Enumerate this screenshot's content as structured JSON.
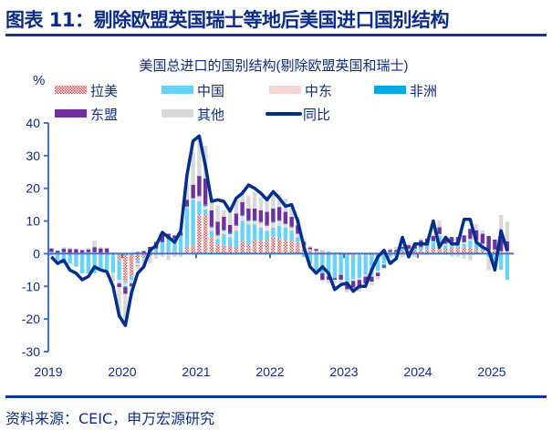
{
  "header": {
    "title": "图表 11：剔除欧盟英国瑞士等地后美国进口国别结构"
  },
  "footer": {
    "source": "资料来源：CEIC，申万宏源研究"
  },
  "chart_data": {
    "type": "bar",
    "subtype": "stacked bar with line",
    "title": "美国总进口的国别结构(剔除欧盟英国和瑞士)",
    "ylabel": "%",
    "ylim": [
      -30,
      40
    ],
    "yticks": [
      40,
      30,
      20,
      10,
      0,
      -10,
      -20,
      -30
    ],
    "xticks": [
      "2019",
      "2020",
      "2021",
      "2022",
      "2023",
      "2024",
      "2025"
    ],
    "x_start": "2019-01",
    "x_end": "2025-03",
    "frequency": "monthly",
    "legend_placement": "top",
    "grid": false,
    "series": [
      {
        "name": "拉美",
        "kind": "bar",
        "color": "#f08080",
        "pattern": "dotted",
        "values": [
          0.3,
          0.2,
          0.3,
          0.2,
          0.2,
          0.1,
          0.2,
          0.3,
          0.2,
          0.2,
          -0.5,
          -2,
          -8,
          -7,
          -2,
          -1,
          -1,
          0.5,
          0.5,
          0.5,
          0.5,
          0.5,
          2,
          2.5,
          12,
          12,
          5,
          3,
          2.5,
          2.5,
          2,
          4,
          3,
          4,
          4,
          4,
          5,
          4.5,
          4,
          4,
          3.5,
          2,
          1,
          0.5,
          0.5,
          0.3,
          -0.5,
          -0.5,
          -0.5,
          -0.8,
          -0.5,
          -0.5,
          -0.5,
          -0.3,
          0.2,
          0.5,
          0.5,
          1,
          1.5,
          1,
          1,
          1.5,
          2,
          2,
          1.5,
          2,
          2,
          2,
          2,
          1.5,
          1,
          1,
          1,
          0.5,
          0.5
        ]
      },
      {
        "name": "中国",
        "kind": "bar",
        "color": "#66d4fa",
        "values": [
          -0.5,
          -2,
          -3,
          -3,
          -4,
          -6,
          -6,
          -6,
          -5,
          -5,
          -5,
          -6,
          -1,
          -1,
          -1,
          -0.5,
          0.5,
          1,
          3,
          4,
          4,
          5,
          12,
          14,
          4,
          1.5,
          2,
          1.5,
          3.5,
          2.5,
          5,
          6,
          6,
          5,
          4,
          3,
          3,
          4,
          4,
          3,
          1.5,
          -1,
          -3,
          -5,
          -6,
          -7,
          -7,
          -6,
          -8,
          -7,
          -7,
          -6,
          -6,
          -5,
          -3,
          -1,
          -1,
          0.5,
          -0.5,
          0.5,
          1,
          1,
          1.5,
          3.5,
          1,
          1,
          1,
          1,
          2,
          2,
          1.5,
          -1,
          -3,
          -5,
          -8
        ]
      },
      {
        "name": "中东",
        "kind": "bar",
        "color": "#f8d4d4",
        "values": [
          0.2,
          0.1,
          0.1,
          0.1,
          0.1,
          0.1,
          0.2,
          0.1,
          0.1,
          0.1,
          0,
          -1,
          -1,
          -1,
          -0.5,
          -0.5,
          0,
          0,
          0,
          0,
          0,
          0,
          0.3,
          0.3,
          1.5,
          1,
          1,
          1,
          1,
          1,
          1.5,
          1.5,
          1,
          1,
          1.5,
          1.5,
          1.5,
          1.5,
          1,
          1,
          1,
          0.5,
          0.3,
          0.3,
          0.3,
          0.2,
          0.2,
          0.2,
          -0.3,
          -0.5,
          -0.5,
          -0.5,
          -0.5,
          -0.5,
          -0.3,
          -0.3,
          0,
          0,
          0,
          0,
          0,
          0,
          0.3,
          0.5,
          0.5,
          0.5,
          0.5,
          0.5,
          0.5,
          0.5,
          0.5,
          0.3,
          0.2,
          0.2,
          0.2
        ]
      },
      {
        "name": "非洲",
        "kind": "bar",
        "color": "#00a8e6",
        "values": [
          0.1,
          0.1,
          0.1,
          0.1,
          0.1,
          0.1,
          0.1,
          0.1,
          0.1,
          0.1,
          -0.1,
          -0.2,
          -0.3,
          -0.5,
          -0.2,
          -0.1,
          0.1,
          0.1,
          0.1,
          0.1,
          0.1,
          0.1,
          0.2,
          0.3,
          0.3,
          0.5,
          0.3,
          0.3,
          0.3,
          0.3,
          0.3,
          0.3,
          0.3,
          0.3,
          0.3,
          0.3,
          0.3,
          0.3,
          0.3,
          0.3,
          0.2,
          0.1,
          0.1,
          0.1,
          0.1,
          0.1,
          0.1,
          0.1,
          -0.1,
          -0.1,
          -0.1,
          -0.1,
          -0.1,
          -0.1,
          -0.5,
          0.1,
          0.1,
          0.1,
          0.1,
          0.1,
          0.1,
          0.1,
          0.1,
          0.1,
          0.1,
          0.1,
          0.1,
          0.1,
          0.1,
          0.1,
          0.1,
          0.1,
          0.1,
          0.1,
          0.1
        ]
      },
      {
        "name": "东盟",
        "kind": "bar",
        "color": "#7030a0",
        "values": [
          1,
          0.5,
          1,
          1,
          1,
          0.8,
          0.8,
          1.5,
          1.2,
          1.2,
          0.3,
          -1,
          -2,
          -0.5,
          0.5,
          0.8,
          1.5,
          2,
          2.5,
          1.5,
          1,
          1,
          2,
          4,
          6,
          8,
          5,
          4,
          4,
          2.5,
          3.5,
          4,
          3.5,
          3.5,
          3.5,
          4,
          4,
          4,
          3.5,
          3,
          2.5,
          1,
          0.5,
          0.5,
          -2,
          -1,
          -0.5,
          -1.5,
          -2,
          -2,
          -2.5,
          -2,
          -1.5,
          -1,
          -0.5,
          0.5,
          0.5,
          0.5,
          1,
          1,
          2,
          2,
          1.5,
          2,
          1.5,
          1.5,
          1.5,
          2,
          3,
          3,
          3,
          4,
          3,
          4,
          3
        ]
      },
      {
        "name": "其他",
        "kind": "bar",
        "color": "#d9d9d9",
        "values": [
          -0.5,
          -1,
          0.5,
          0.5,
          0,
          0,
          0.5,
          2,
          0.5,
          0.3,
          -3,
          -9,
          -10,
          -3,
          -1,
          -2,
          -2,
          -1.5,
          -1,
          -2,
          -1,
          -1,
          5,
          10,
          12,
          10,
          4,
          5,
          2,
          4,
          4,
          3,
          4,
          5,
          4,
          5,
          5,
          4,
          4,
          3,
          2.5,
          1,
          0.5,
          0,
          -0.5,
          -1,
          -1,
          -1,
          -1,
          -1.5,
          -1,
          -1,
          -1,
          -1,
          -0.5,
          0.5,
          1,
          -1,
          0.5,
          -1,
          0.5,
          -0.5,
          0.5,
          2,
          -0.5,
          -1,
          -1,
          -1.5,
          -2,
          2,
          1,
          -4,
          -2,
          7,
          6
        ]
      },
      {
        "name": "同比",
        "kind": "line",
        "color": "#002f8e",
        "values": [
          -1,
          -3,
          -2,
          -5,
          -6,
          -8,
          -7,
          -4,
          -5,
          -5.5,
          -10,
          -19,
          -22,
          -12,
          -6,
          -4,
          1,
          2.5,
          6.5,
          5,
          3.5,
          7,
          24,
          34.5,
          36,
          27,
          16,
          16.5,
          16,
          13,
          17,
          18.5,
          21,
          20,
          18.5,
          16.5,
          19,
          17,
          14.5,
          15,
          10,
          2,
          -4,
          -6,
          -4,
          -6,
          -11,
          -9.5,
          -9,
          -11.5,
          -10,
          -10,
          -5,
          -1,
          1,
          -3,
          -1.5,
          5,
          -1,
          3,
          3,
          3,
          10,
          2,
          5,
          3,
          3,
          10.5,
          10.5,
          3.5,
          2,
          1,
          -5,
          7,
          1
        ]
      }
    ]
  }
}
